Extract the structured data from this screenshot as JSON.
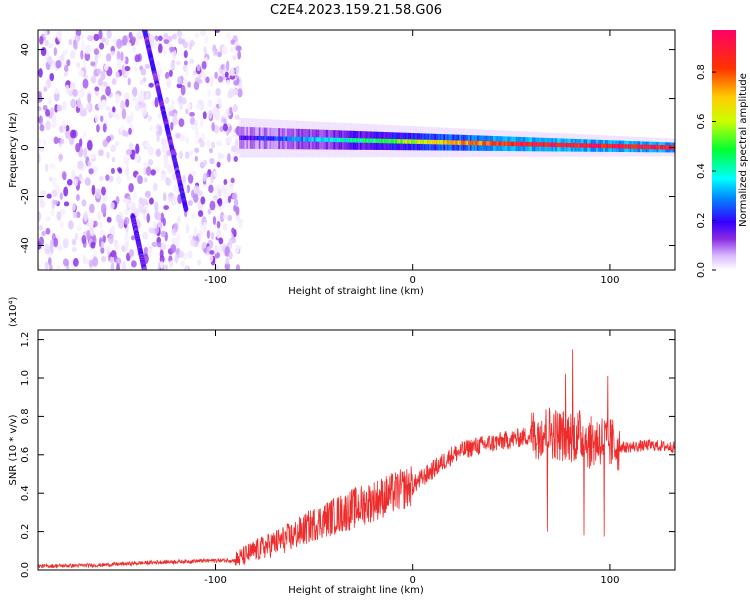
{
  "figure": {
    "title": "C2E4.2023.159.21.58.G06"
  },
  "colors": {
    "snr_line": "#ee2c2c",
    "colormap": [
      "#ffffff",
      "#d9b8ff",
      "#8a2be2",
      "#3300ff",
      "#0088ff",
      "#00ffff",
      "#00ff33",
      "#ccff00",
      "#ffcc00",
      "#ff3300",
      "#ff0066"
    ]
  },
  "chart_data": [
    {
      "type": "heatmap",
      "title": "",
      "xlabel": "Height of straight line (km)",
      "ylabel": "Frequency (Hz)",
      "xlim": [
        -190,
        133
      ],
      "ylim": [
        -50,
        48
      ],
      "xticks": [
        -100,
        0,
        100
      ],
      "yticks": [
        -40,
        -20,
        0,
        20,
        40
      ],
      "colorbar": {
        "label": "Normalized spectral amplitude",
        "range": [
          0.0,
          0.97
        ],
        "ticks": [
          0.0,
          0.2,
          0.4,
          0.6,
          0.8
        ]
      },
      "features": [
        {
          "kind": "noise_region",
          "x_range": [
            -190,
            -87
          ],
          "f_range": [
            -50,
            48
          ]
        },
        {
          "kind": "diagonal_track",
          "x": [
            -136,
            -115
          ],
          "f": [
            48,
            -25
          ],
          "amp": 0.25
        },
        {
          "kind": "diagonal_track",
          "x": [
            -142,
            -136
          ],
          "f": [
            -28,
            -50
          ],
          "amp": 0.25
        },
        {
          "kind": "carrier",
          "x_range": [
            -88,
            133
          ],
          "f_center": [
            4,
            0
          ],
          "amp_start": 0.25,
          "amp_end": 0.95
        }
      ]
    },
    {
      "type": "line",
      "title": "",
      "xlabel": "Height of straight line (km)",
      "ylabel": "SNR (10 * v/v)",
      "y_multiplier": "(x10⁴)",
      "xlim": [
        -190,
        133
      ],
      "ylim": [
        0.0,
        1.25
      ],
      "xticks": [
        -100,
        0,
        100
      ],
      "yticks": [
        0.0,
        0.2,
        0.4,
        0.6,
        0.8,
        1.0,
        1.2
      ],
      "series": [
        {
          "name": "",
          "x": [
            -190,
            -160,
            -130,
            -100,
            -90,
            -80,
            -70,
            -60,
            -50,
            -40,
            -30,
            -20,
            -10,
            0,
            10,
            20,
            30,
            40,
            50,
            60,
            65,
            70,
            75,
            80,
            85,
            90,
            95,
            100,
            105,
            110,
            120,
            133
          ],
          "y": [
            0.02,
            0.025,
            0.04,
            0.05,
            0.05,
            0.1,
            0.14,
            0.18,
            0.24,
            0.28,
            0.32,
            0.36,
            0.4,
            0.44,
            0.52,
            0.6,
            0.64,
            0.66,
            0.68,
            0.7,
            0.72,
            0.72,
            0.7,
            0.7,
            0.7,
            0.66,
            0.68,
            0.66,
            0.64,
            0.64,
            0.65,
            0.64
          ]
        }
      ]
    }
  ]
}
